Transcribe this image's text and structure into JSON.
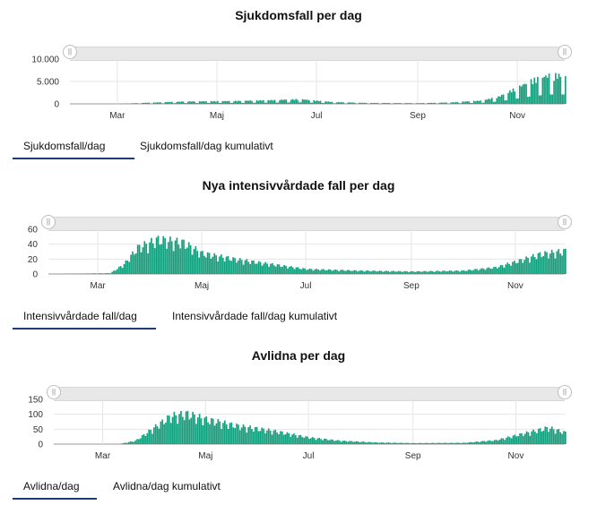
{
  "colors": {
    "bar": "#14a07e",
    "grid": "#e6e6e6",
    "axis": "#999999",
    "tab_underline": "#1f3a7a"
  },
  "panels": [
    {
      "title": "Sjukdomsfall per dag",
      "tabs": [
        {
          "label": "Sjukdomsfall/dag",
          "active": true
        },
        {
          "label": "Sjukdomsfall/dag kumulativt",
          "active": false
        }
      ]
    },
    {
      "title": "Nya intensivvårdade fall per dag",
      "tabs": [
        {
          "label": "Intensivvårdade fall/dag",
          "active": true
        },
        {
          "label": "Intensivvårdade fall/dag kumulativt",
          "active": false
        }
      ]
    },
    {
      "title": "Avlidna per dag",
      "tabs": [
        {
          "label": "Avlidna/dag",
          "active": true
        },
        {
          "label": "Avlidna/dag kumulativt",
          "active": false
        }
      ]
    }
  ],
  "chart_data": [
    {
      "type": "bar",
      "title": "Sjukdomsfall per dag",
      "x_tick_labels": [
        "Mar",
        "Maj",
        "Jul",
        "Sep",
        "Nov"
      ],
      "y_tick_labels": [
        "10.000",
        "5.000",
        "0"
      ],
      "ylim": [
        0,
        10000
      ],
      "x_range": [
        "2020-02-01",
        "2020-11-30"
      ],
      "grid": true,
      "series": [
        {
          "start_date": "2020-02-01",
          "keypoints": [
            [
              "2020-02-01",
              0
            ],
            [
              "2020-03-01",
              5
            ],
            [
              "2020-03-20",
              250
            ],
            [
              "2020-04-10",
              500
            ],
            [
              "2020-05-10",
              600
            ],
            [
              "2020-06-05",
              800
            ],
            [
              "2020-06-20",
              1000
            ],
            [
              "2020-07-10",
              400
            ],
            [
              "2020-08-01",
              200
            ],
            [
              "2020-09-01",
              150
            ],
            [
              "2020-09-20",
              300
            ],
            [
              "2020-10-10",
              700
            ],
            [
              "2020-10-20",
              1500
            ],
            [
              "2020-11-01",
              3500
            ],
            [
              "2020-11-10",
              5000
            ],
            [
              "2020-11-20",
              6000
            ],
            [
              "2020-11-30",
              6000
            ]
          ]
        }
      ]
    },
    {
      "type": "bar",
      "title": "Nya intensivvårdade fall per dag",
      "x_tick_labels": [
        "Mar",
        "Maj",
        "Jul",
        "Sep",
        "Nov"
      ],
      "y_tick_labels": [
        "60",
        "40",
        "20",
        "0"
      ],
      "ylim": [
        0,
        60
      ],
      "x_range": [
        "2020-02-01",
        "2020-11-30"
      ],
      "grid": true,
      "series": [
        {
          "start_date": "2020-02-01",
          "keypoints": [
            [
              "2020-02-01",
              0
            ],
            [
              "2020-03-08",
              1
            ],
            [
              "2020-03-16",
              12
            ],
            [
              "2020-03-24",
              32
            ],
            [
              "2020-04-05",
              42
            ],
            [
              "2020-04-20",
              38
            ],
            [
              "2020-05-01",
              25
            ],
            [
              "2020-05-20",
              18
            ],
            [
              "2020-06-10",
              12
            ],
            [
              "2020-07-01",
              6
            ],
            [
              "2020-08-01",
              4
            ],
            [
              "2020-09-01",
              3
            ],
            [
              "2020-10-01",
              4
            ],
            [
              "2020-10-20",
              8
            ],
            [
              "2020-11-01",
              15
            ],
            [
              "2020-11-15",
              24
            ],
            [
              "2020-11-30",
              28
            ]
          ]
        }
      ]
    },
    {
      "type": "bar",
      "title": "Avlidna per dag",
      "x_tick_labels": [
        "Mar",
        "Maj",
        "Jul",
        "Sep",
        "Nov"
      ],
      "y_tick_labels": [
        "150",
        "100",
        "50",
        "0"
      ],
      "ylim": [
        0,
        150
      ],
      "x_range": [
        "2020-02-01",
        "2020-11-30"
      ],
      "grid": true,
      "series": [
        {
          "start_date": "2020-02-01",
          "keypoints": [
            [
              "2020-02-01",
              0
            ],
            [
              "2020-03-10",
              0
            ],
            [
              "2020-03-20",
              10
            ],
            [
              "2020-03-31",
              50
            ],
            [
              "2020-04-10",
              85
            ],
            [
              "2020-04-20",
              92
            ],
            [
              "2020-05-01",
              75
            ],
            [
              "2020-05-20",
              55
            ],
            [
              "2020-06-10",
              40
            ],
            [
              "2020-07-01",
              20
            ],
            [
              "2020-07-20",
              10
            ],
            [
              "2020-08-10",
              5
            ],
            [
              "2020-09-01",
              3
            ],
            [
              "2020-10-01",
              4
            ],
            [
              "2020-10-20",
              12
            ],
            [
              "2020-11-05",
              32
            ],
            [
              "2020-11-20",
              50
            ],
            [
              "2020-11-30",
              35
            ]
          ]
        }
      ]
    }
  ]
}
